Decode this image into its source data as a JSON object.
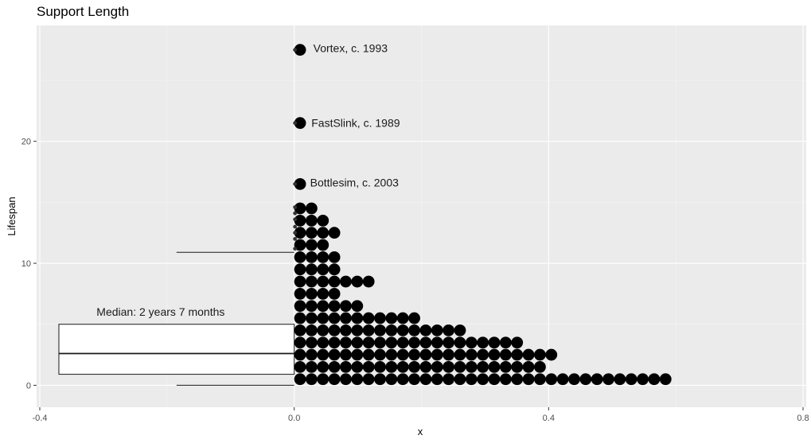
{
  "chart_data": {
    "type": "dotplot",
    "title": "Support Length",
    "xlabel": "x",
    "ylabel": "Lifespan",
    "xlim": [
      -0.405,
      0.805
    ],
    "ylim": [
      -1.8,
      29.5
    ],
    "x_ticks": [
      -0.4,
      0.0,
      0.4,
      0.8
    ],
    "x_tick_labels": [
      "-0.4",
      "0.0",
      "0.4",
      "0.8"
    ],
    "y_ticks": [
      0,
      10,
      20
    ],
    "y_tick_labels": [
      "0",
      "10",
      "20"
    ],
    "grid": true,
    "dot_bins": [
      {
        "y": 0.5,
        "count": 33
      },
      {
        "y": 1.5,
        "count": 22
      },
      {
        "y": 2.5,
        "count": 23
      },
      {
        "y": 3.5,
        "count": 20
      },
      {
        "y": 4.5,
        "count": 15
      },
      {
        "y": 5.5,
        "count": 11
      },
      {
        "y": 6.5,
        "count": 6
      },
      {
        "y": 7.5,
        "count": 4
      },
      {
        "y": 8.5,
        "count": 7
      },
      {
        "y": 9.5,
        "count": 4
      },
      {
        "y": 10.5,
        "count": 4
      },
      {
        "y": 11.5,
        "count": 3
      },
      {
        "y": 12.5,
        "count": 4
      },
      {
        "y": 13.5,
        "count": 3
      },
      {
        "y": 14.5,
        "count": 2
      },
      {
        "y": 16.5,
        "count": 1
      },
      {
        "y": 21.5,
        "count": 1
      },
      {
        "y": 27.5,
        "count": 1
      }
    ],
    "small_points_y": [
      11.2,
      12.0,
      12.5,
      13.0,
      13.6,
      14.1,
      14.6,
      16.5,
      21.5,
      27.5
    ],
    "boxplot": {
      "x_left": -0.37,
      "x_right": 0.0,
      "q1": 0.9,
      "median": 2.6,
      "q3": 5.0,
      "whisker_low": 0.0,
      "whisker_high": 10.9,
      "whisker_x_start": -0.185
    },
    "annotations": [
      {
        "text": "Median: 2 years 7 months",
        "x": -0.21,
        "y": 5.7
      },
      {
        "text": "Bottlesim, c. 2003",
        "x": 0.025,
        "y": 16.3
      },
      {
        "text": "FastSlink, c. 1989",
        "x": 0.027,
        "y": 21.2
      },
      {
        "text": "Vortex, c. 1993",
        "x": 0.03,
        "y": 27.3
      }
    ]
  }
}
